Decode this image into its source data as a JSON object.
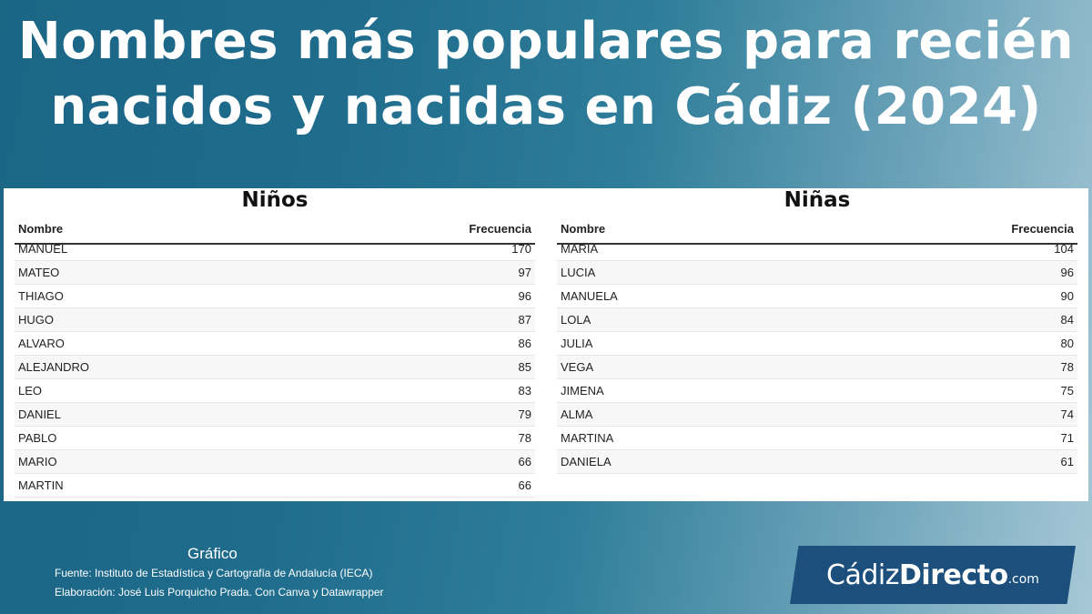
{
  "headline": {
    "line1": "Nombres más populares para recién",
    "line2": "nacidos y nacidas en Cádiz (2024)"
  },
  "chart_data": [
    {
      "type": "table",
      "title": "Niños",
      "columns": [
        "Nombre",
        "Frecuencia"
      ],
      "rows": [
        {
          "name": "MANUEL",
          "value": 170
        },
        {
          "name": "MATEO",
          "value": 97
        },
        {
          "name": "THIAGO",
          "value": 96
        },
        {
          "name": "HUGO",
          "value": 87
        },
        {
          "name": "ALVARO",
          "value": 86
        },
        {
          "name": "ALEJANDRO",
          "value": 85
        },
        {
          "name": "LEO",
          "value": 83
        },
        {
          "name": "DANIEL",
          "value": 79
        },
        {
          "name": "PABLO",
          "value": 78
        },
        {
          "name": "MARIO",
          "value": 66
        },
        {
          "name": "MARTIN",
          "value": 66
        }
      ]
    },
    {
      "type": "table",
      "title": "Niñas",
      "columns": [
        "Nombre",
        "Frecuencia"
      ],
      "rows": [
        {
          "name": "MARIA",
          "value": 104
        },
        {
          "name": "LUCIA",
          "value": 96
        },
        {
          "name": "MANUELA",
          "value": 90
        },
        {
          "name": "LOLA",
          "value": 84
        },
        {
          "name": "JULIA",
          "value": 80
        },
        {
          "name": "VEGA",
          "value": 78
        },
        {
          "name": "JIMENA",
          "value": 75
        },
        {
          "name": "ALMA",
          "value": 74
        },
        {
          "name": "MARTINA",
          "value": 71
        },
        {
          "name": "DANIELA",
          "value": 61
        }
      ]
    }
  ],
  "footer": {
    "label": "Gráfico",
    "source": "Fuente:  Instituto de Estadística y Cartografía de Andalucía (IECA)",
    "credit": "Elaboración: José Luis Porquicho Prada. Con Canva y Datawrapper"
  },
  "logo": {
    "part1": "Cádiz",
    "part2": "Directo",
    "part3": ".com"
  },
  "colors": {
    "background": "#1f6c8d",
    "logo_bg": "#1c4f7c",
    "panel": "#ffffff"
  }
}
